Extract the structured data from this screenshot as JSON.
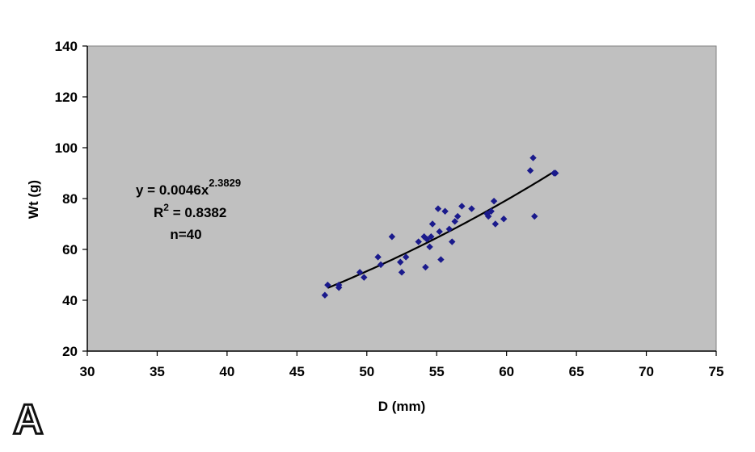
{
  "panel_label": "A",
  "chart_data": {
    "type": "scatter",
    "xlabel": "D (mm)",
    "ylabel": "Wt (g)",
    "xlim": [
      30,
      75
    ],
    "ylim": [
      20,
      140
    ],
    "xticks": [
      30,
      35,
      40,
      45,
      50,
      55,
      60,
      65,
      70,
      75
    ],
    "yticks": [
      20,
      40,
      60,
      80,
      100,
      120,
      140
    ],
    "grid": false,
    "plot_background": "#c0c0c0",
    "marker_color": "#1a1a8c",
    "trendline_color": "#000000",
    "annotations": {
      "equation_prefix": "y = 0.0046x",
      "equation_exponent": "2.3829",
      "r2_prefix": "R",
      "r2_superscript": "2",
      "r2_value": " = 0.8382",
      "n": "n=40"
    },
    "trendline": {
      "type": "power",
      "a": 0.0046,
      "b": 2.3829,
      "x_range": [
        47.2,
        63.4
      ]
    },
    "points": [
      {
        "x": 47.0,
        "y": 42
      },
      {
        "x": 47.2,
        "y": 46
      },
      {
        "x": 48.0,
        "y": 46
      },
      {
        "x": 48.0,
        "y": 45
      },
      {
        "x": 49.5,
        "y": 51
      },
      {
        "x": 49.8,
        "y": 49
      },
      {
        "x": 50.8,
        "y": 57
      },
      {
        "x": 51.0,
        "y": 54
      },
      {
        "x": 51.8,
        "y": 65
      },
      {
        "x": 52.4,
        "y": 55
      },
      {
        "x": 52.5,
        "y": 51
      },
      {
        "x": 52.8,
        "y": 57
      },
      {
        "x": 53.7,
        "y": 63
      },
      {
        "x": 54.1,
        "y": 65
      },
      {
        "x": 54.2,
        "y": 53
      },
      {
        "x": 54.3,
        "y": 64
      },
      {
        "x": 54.5,
        "y": 61
      },
      {
        "x": 54.6,
        "y": 65
      },
      {
        "x": 54.7,
        "y": 70
      },
      {
        "x": 55.1,
        "y": 76
      },
      {
        "x": 55.2,
        "y": 67
      },
      {
        "x": 55.3,
        "y": 56
      },
      {
        "x": 55.6,
        "y": 75
      },
      {
        "x": 55.9,
        "y": 68
      },
      {
        "x": 56.1,
        "y": 63
      },
      {
        "x": 56.3,
        "y": 71
      },
      {
        "x": 56.5,
        "y": 73
      },
      {
        "x": 56.8,
        "y": 77
      },
      {
        "x": 57.5,
        "y": 76
      },
      {
        "x": 58.6,
        "y": 74
      },
      {
        "x": 58.7,
        "y": 73
      },
      {
        "x": 58.9,
        "y": 75
      },
      {
        "x": 59.1,
        "y": 79
      },
      {
        "x": 59.2,
        "y": 70
      },
      {
        "x": 59.8,
        "y": 72
      },
      {
        "x": 61.7,
        "y": 91
      },
      {
        "x": 61.9,
        "y": 96
      },
      {
        "x": 62.0,
        "y": 73
      },
      {
        "x": 63.4,
        "y": 90
      },
      {
        "x": 63.5,
        "y": 90
      }
    ]
  }
}
